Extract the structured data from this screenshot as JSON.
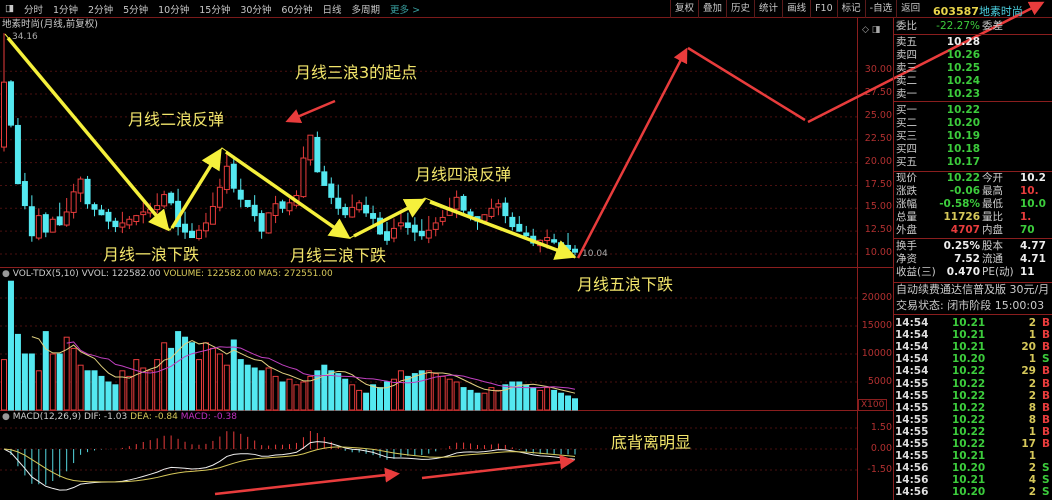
{
  "toolbar": {
    "periods": [
      "分时",
      "1分钟",
      "2分钟",
      "5分钟",
      "10分钟",
      "15分钟",
      "30分钟",
      "60分钟",
      "日线",
      "多周期"
    ],
    "more": "更多 >",
    "tools": [
      "复权",
      "叠加",
      "历史",
      "统计",
      "画线",
      "F10",
      "标记",
      "-自选",
      "返回"
    ]
  },
  "chart": {
    "title": "地素时尚(月线,前复权)",
    "high_label": "34.16",
    "last_label": "10.04",
    "price_axis": [
      "30.00",
      "27.50",
      "25.00",
      "22.50",
      "20.00",
      "17.50",
      "15.00",
      "12.50",
      "10.00"
    ],
    "vol_axis": [
      "20000",
      "15000",
      "10000",
      "5000"
    ],
    "vol_unit": "X100",
    "macd_axis": [
      "1.50",
      "0.00",
      "-1.50"
    ],
    "vol_indicator": {
      "name": "VOL-TDX(5,10)",
      "vvol": "VVOL: 122582.00",
      "volume": "VOLUME: 122582.00",
      "ma5": "MA5: 272551.00"
    },
    "macd_indicator": {
      "name": "MACD(12,26,9)",
      "dif": "DIF: -1.03",
      "dea": "DEA: -0.84",
      "macd": "MACD: -0.38"
    },
    "closes": [
      28.8,
      24.1,
      17.7,
      15.3,
      12.0,
      14.2,
      12.4,
      13.8,
      13.2,
      14.6,
      16.8,
      18.2,
      15.5,
      14.9,
      14.3,
      13.6,
      13.0,
      13.4,
      13.8,
      14.2,
      14.6,
      14.9,
      15.3,
      16.5,
      15.6,
      13.0,
      12.4,
      11.8,
      12.6,
      13.4,
      15.2,
      17.3,
      19.6,
      17.2,
      16.0,
      15.2,
      14.2,
      12.5,
      14.5,
      15.5,
      15.0,
      15.6,
      16.4,
      20.5,
      23.0,
      19.0,
      17.5,
      16.2,
      15.0,
      14.3,
      15.1,
      15.6,
      14.5,
      13.9,
      12.2,
      11.5,
      12.8,
      13.4,
      12.9,
      12.4,
      12.0,
      12.6,
      13.4,
      14.0,
      15.0,
      16.2,
      14.8,
      14.2,
      13.6,
      14.3,
      15.0,
      15.5,
      14.2,
      13.0,
      12.5,
      12.0,
      11.2,
      11.5,
      11.8,
      11.3,
      10.8,
      10.5,
      10.2
    ],
    "first_open": 21.7,
    "first_high": 34.16,
    "volumes": [
      9000,
      23000,
      13500,
      10000,
      10000,
      7000,
      14000,
      10000,
      10000,
      13000,
      11000,
      8000,
      7000,
      7000,
      6000,
      5000,
      4500,
      7000,
      6000,
      9000,
      7500,
      7000,
      9000,
      12000,
      11000,
      14000,
      13000,
      12000,
      9000,
      12000,
      11000,
      10000,
      8000,
      12500,
      9000,
      8000,
      7500,
      7000,
      7500,
      6000,
      5000,
      5500,
      4500,
      5000,
      6000,
      7000,
      8000,
      7000,
      6500,
      5500,
      4500,
      3500,
      3000,
      4500,
      4000,
      5000,
      5500,
      7000,
      6000,
      6500,
      7000,
      7000,
      6500,
      6000,
      5500,
      5000,
      4000,
      3500,
      3000,
      3000,
      4000,
      3500,
      4500,
      5000,
      5000,
      4500,
      4000,
      3500,
      4000,
      3500,
      3000,
      2500,
      2000
    ],
    "annotations": {
      "wave3_start": "月线三浪3的起点",
      "wave2": "月线二浪反弹",
      "wave4": "月线四浪反弹",
      "wave1": "月线一浪下跌",
      "wave3": "月线三浪下跌",
      "wave5": "月线五浪下跌",
      "divergence": "底背离明显"
    },
    "colors": {
      "up": "#e83c3c",
      "down": "#54e8f0",
      "annotation": "#f2e56b",
      "arrow_yellow": "#f5f03c",
      "arrow_red": "#e83c3c"
    }
  },
  "panel": {
    "code": "603587",
    "name": "地素时尚",
    "commit": {
      "k": "委比",
      "v": "-22.27%",
      "k2": "委差"
    },
    "asks": [
      {
        "k": "卖五",
        "v": "10.28"
      },
      {
        "k": "卖四",
        "v": "10.26"
      },
      {
        "k": "卖三",
        "v": "10.25"
      },
      {
        "k": "卖二",
        "v": "10.24"
      },
      {
        "k": "卖一",
        "v": "10.23"
      }
    ],
    "bids": [
      {
        "k": "买一",
        "v": "10.22"
      },
      {
        "k": "买二",
        "v": "10.20"
      },
      {
        "k": "买三",
        "v": "10.19"
      },
      {
        "k": "买四",
        "v": "10.18"
      },
      {
        "k": "买五",
        "v": "10.17"
      }
    ],
    "quote": [
      {
        "k": "现价",
        "v": "10.22",
        "k2": "今开",
        "v2": "10.2"
      },
      {
        "k": "涨跌",
        "v": "-0.06",
        "k2": "最高",
        "v2": "10."
      },
      {
        "k": "涨幅",
        "v": "-0.58%",
        "k2": "最低",
        "v2": "10.0"
      },
      {
        "k": "总量",
        "v": "11726",
        "k2": "量比",
        "v2": "1."
      },
      {
        "k": "外盘",
        "v": "4707",
        "k2": "内盘",
        "v2": "70"
      }
    ],
    "fund": [
      {
        "k": "换手",
        "v": "0.25%",
        "k2": "股本",
        "v2": "4.77"
      },
      {
        "k": "净资",
        "v": "7.52",
        "k2": "流通",
        "v2": "4.71"
      },
      {
        "k": "收益(三)",
        "v": "0.470",
        "k2": "PE(动)",
        "v2": "11"
      }
    ],
    "promo": "自动续费通达信普及版  30元/月",
    "status": "交易状态: 闭市阶段 15:00:03",
    "ticks": [
      [
        "14:54",
        "10.21",
        "2",
        "B"
      ],
      [
        "14:54",
        "10.21",
        "1",
        "B"
      ],
      [
        "14:54",
        "10.21",
        "20",
        "B"
      ],
      [
        "14:54",
        "10.20",
        "1",
        "S"
      ],
      [
        "14:54",
        "10.22",
        "29",
        "B"
      ],
      [
        "14:55",
        "10.22",
        "2",
        "B"
      ],
      [
        "14:55",
        "10.22",
        "2",
        "B"
      ],
      [
        "14:55",
        "10.22",
        "8",
        "B"
      ],
      [
        "14:55",
        "10.22",
        "8",
        "B"
      ],
      [
        "14:55",
        "10.22",
        "1",
        "B"
      ],
      [
        "14:55",
        "10.22",
        "17",
        "B"
      ],
      [
        "14:55",
        "10.21",
        "1",
        ""
      ],
      [
        "14:56",
        "10.20",
        "2",
        "S"
      ],
      [
        "14:56",
        "10.21",
        "4",
        "S"
      ],
      [
        "14:56",
        "10.20",
        "2",
        "S"
      ]
    ]
  }
}
